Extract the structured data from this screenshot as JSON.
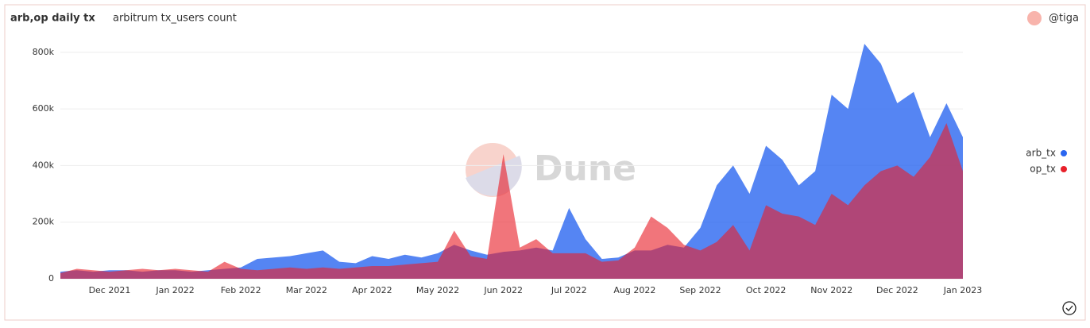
{
  "chart_data": {
    "type": "area",
    "title": "arb,op daily tx",
    "subtitle": "arbitrum tx_users count",
    "author": "@tiga",
    "watermark": "Dune",
    "categories": [
      null,
      null,
      null,
      "Dec 2021",
      null,
      null,
      null,
      "Jan 2022",
      null,
      null,
      null,
      "Feb 2022",
      null,
      null,
      null,
      "Mar 2022",
      null,
      null,
      null,
      "Apr 2022",
      null,
      null,
      null,
      "May 2022",
      null,
      null,
      null,
      "Jun 2022",
      null,
      null,
      null,
      "Jul 2022",
      null,
      null,
      null,
      "Aug 2022",
      null,
      null,
      null,
      "Sep 2022",
      null,
      null,
      null,
      "Oct 2022",
      null,
      null,
      null,
      "Nov 2022",
      null,
      null,
      null,
      "Dec 2022",
      null,
      null,
      null,
      "Jan 2023"
    ],
    "series": [
      {
        "name": "arb_tx",
        "color": "#2a66f0",
        "values": [
          25000,
          30000,
          25000,
          30000,
          30000,
          25000,
          30000,
          30000,
          25000,
          30000,
          35000,
          40000,
          70000,
          75000,
          80000,
          90000,
          100000,
          60000,
          55000,
          80000,
          70000,
          85000,
          75000,
          90000,
          120000,
          100000,
          85000,
          95000,
          100000,
          110000,
          100000,
          250000,
          140000,
          70000,
          75000,
          100000,
          100000,
          120000,
          110000,
          180000,
          330000,
          400000,
          300000,
          470000,
          420000,
          330000,
          380000,
          650000,
          600000,
          830000,
          760000,
          620000,
          660000,
          500000,
          620000,
          500000
        ]
      },
      {
        "name": "op_tx",
        "color": "#e8202a",
        "values": [
          20000,
          35000,
          30000,
          25000,
          30000,
          35000,
          30000,
          35000,
          30000,
          25000,
          60000,
          35000,
          30000,
          35000,
          40000,
          35000,
          40000,
          35000,
          40000,
          45000,
          45000,
          50000,
          55000,
          60000,
          170000,
          80000,
          70000,
          440000,
          110000,
          140000,
          90000,
          90000,
          90000,
          60000,
          65000,
          110000,
          220000,
          180000,
          120000,
          100000,
          130000,
          190000,
          100000,
          260000,
          230000,
          220000,
          190000,
          300000,
          260000,
          330000,
          380000,
          400000,
          360000,
          430000,
          550000,
          380000
        ]
      }
    ],
    "ylim": [
      0,
      850000
    ],
    "yticks": [
      0,
      {
        "value": 200000,
        "label": "200k"
      },
      {
        "value": 400000,
        "label": "400k"
      },
      {
        "value": 600000,
        "label": "600k"
      },
      {
        "value": 800000,
        "label": "800k"
      }
    ],
    "grid": true,
    "legend": "right"
  }
}
